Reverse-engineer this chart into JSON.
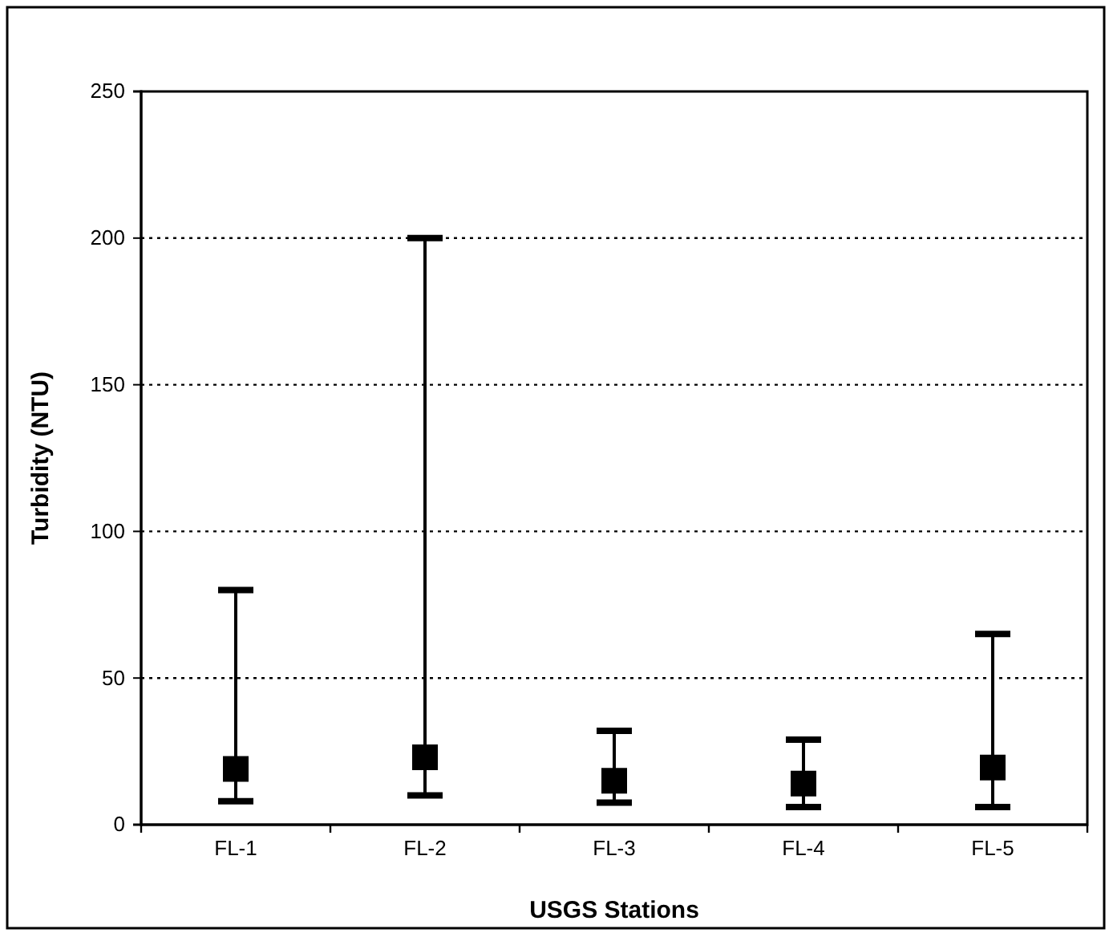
{
  "chart_data": {
    "type": "scatter",
    "xlabel": "USGS Stations",
    "ylabel": "Turbidity (NTU)",
    "categories": [
      "FL-1",
      "FL-2",
      "FL-3",
      "FL-4",
      "FL-5"
    ],
    "values": [
      19,
      23,
      15,
      14,
      19.5
    ],
    "errors": [
      [
        8,
        80
      ],
      [
        10,
        200
      ],
      [
        7.5,
        32
      ],
      [
        6,
        29
      ],
      [
        6,
        65
      ]
    ],
    "color": "#000000",
    "marker": "square",
    "ylim": [
      0,
      250
    ],
    "yticks": [
      0,
      50,
      100,
      150,
      200,
      250
    ],
    "grid": "y"
  }
}
